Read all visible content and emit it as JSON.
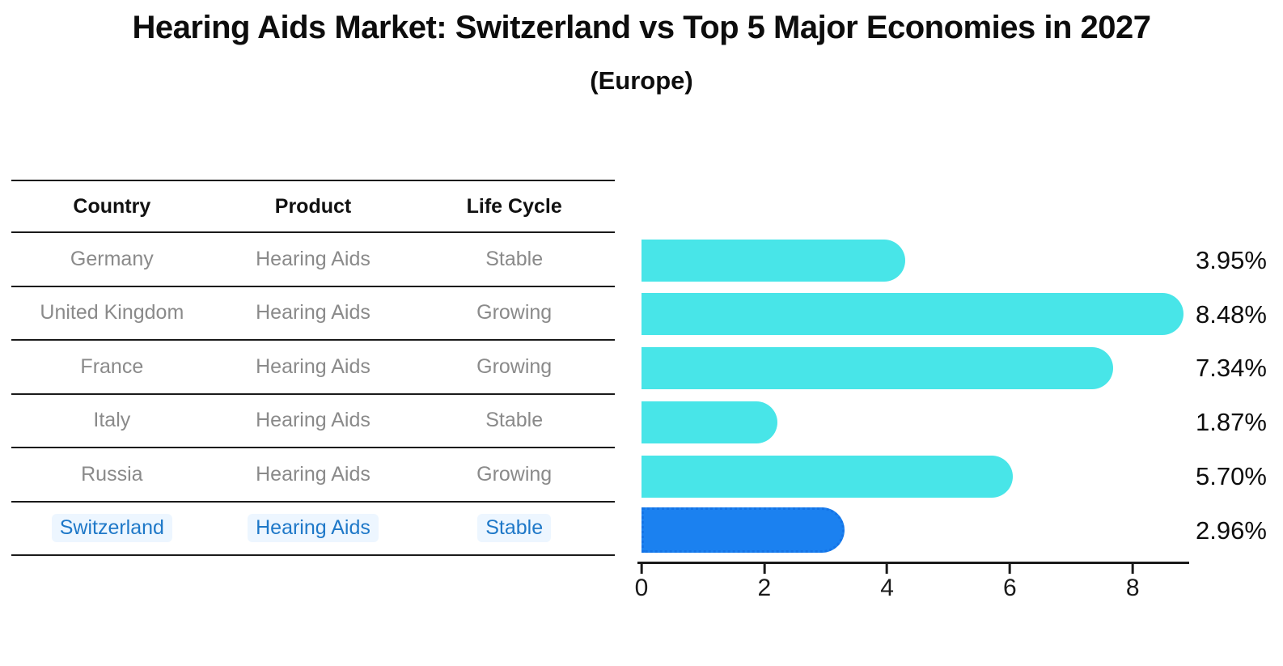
{
  "header": {
    "title": "Hearing Aids Market: Switzerland vs Top 5 Major Economies in 2027",
    "subtitle": "(Europe)"
  },
  "table": {
    "columns": [
      "Country",
      "Product",
      "Life Cycle"
    ],
    "rows": [
      {
        "country": "Germany",
        "product": "Hearing Aids",
        "life_cycle": "Stable",
        "highlight": false
      },
      {
        "country": "United Kingdom",
        "product": "Hearing Aids",
        "life_cycle": "Growing",
        "highlight": false
      },
      {
        "country": "France",
        "product": "Hearing Aids",
        "life_cycle": "Growing",
        "highlight": false
      },
      {
        "country": "Italy",
        "product": "Hearing Aids",
        "life_cycle": "Stable",
        "highlight": false
      },
      {
        "country": "Russia",
        "product": "Hearing Aids",
        "life_cycle": "Growing",
        "highlight": true
      },
      {
        "country": "Switzerland",
        "product": "Hearing Aids",
        "life_cycle": "Stable",
        "highlight": true
      }
    ]
  },
  "chart_data": {
    "type": "bar",
    "orientation": "horizontal",
    "title": "Hearing Aids Market: Switzerland vs Top 5 Major Economies in 2027",
    "subtitle": "(Europe)",
    "categories": [
      "Germany",
      "United Kingdom",
      "France",
      "Italy",
      "Russia",
      "Switzerland"
    ],
    "values": [
      3.95,
      8.48,
      7.34,
      1.87,
      5.7,
      2.96
    ],
    "labels": [
      "3.95%",
      "8.48%",
      "7.34%",
      "1.87%",
      "5.70%",
      "2.96%"
    ],
    "xticks": [
      0,
      2,
      4,
      6,
      8
    ],
    "xlim": [
      0,
      8.9
    ],
    "grid": false,
    "legend": "none",
    "bar_color": "#48E5E8",
    "highlight_bar_color": "#1B81F0",
    "highlight_index": 5,
    "highlight_text_color": "#1E78C8"
  }
}
